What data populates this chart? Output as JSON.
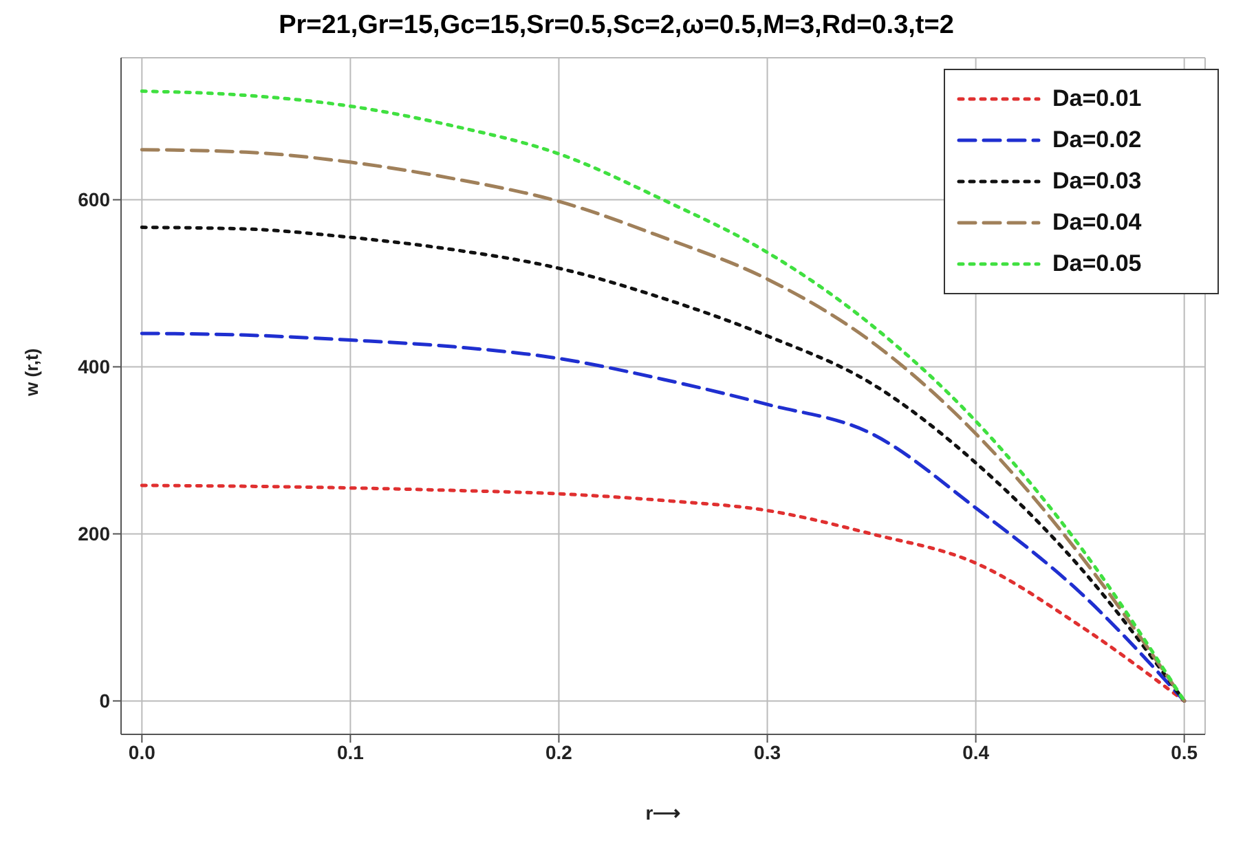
{
  "chart_data": {
    "type": "line",
    "title": "Pr=21,Gr=15,Gc=15,Sr=0.5,Sc=2,ω=0.5,M=3,Rd=0.3,t=2",
    "xlabel": "r⟶",
    "ylabel": "w (r,t)",
    "x": [
      0,
      0.05,
      0.1,
      0.15,
      0.2,
      0.25,
      0.3,
      0.35,
      0.4,
      0.45,
      0.5
    ],
    "series": [
      {
        "name": "Da=0.01",
        "color": "#e03030",
        "line_style": "dotted",
        "values": [
          258,
          257,
          255,
          252,
          248,
          240,
          228,
          200,
          165,
          90,
          0
        ]
      },
      {
        "name": "Da=0.02",
        "color": "#1f2fd0",
        "line_style": "dashed",
        "values": [
          440,
          438,
          432,
          424,
          410,
          385,
          355,
          320,
          231,
          130,
          0
        ]
      },
      {
        "name": "Da=0.03",
        "color": "#111111",
        "line_style": "dotted",
        "values": [
          567,
          565,
          555,
          540,
          518,
          482,
          437,
          380,
          285,
          160,
          0
        ]
      },
      {
        "name": "Da=0.04",
        "color": "#a0805a",
        "line_style": "dashed",
        "values": [
          660,
          657,
          645,
          625,
          598,
          555,
          505,
          430,
          320,
          175,
          0
        ]
      },
      {
        "name": "Da=0.05",
        "color": "#40e040",
        "line_style": "dotted",
        "values": [
          730,
          725,
          712,
          688,
          655,
          600,
          537,
          450,
          335,
          185,
          0
        ]
      }
    ],
    "xlim": [
      -0.01,
      0.51
    ],
    "ylim": [
      -40,
      770
    ],
    "xticks": [
      {
        "value": 0,
        "label": "0.0"
      },
      0.1,
      0.2,
      0.3,
      0.4,
      0.5
    ],
    "yticks": [
      0,
      200,
      400,
      600
    ],
    "grid": true,
    "legend": "top right",
    "marker": "none"
  }
}
